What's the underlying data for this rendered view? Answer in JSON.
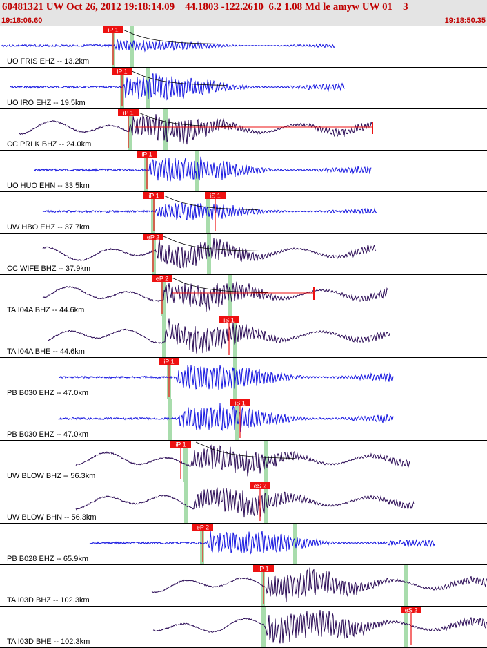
{
  "header": {
    "title": "60481321 UW Oct 26, 2012 19:18:14.09    44.1803 -122.2610  6.2 1.08 Md le amyw UW 01    3",
    "start_time": "19:18:06.60",
    "end_time": "19:18:50.35"
  },
  "colors": {
    "trace_blue": "#1515e0",
    "trace_dark": "#2a0a55",
    "pick_red": "#ee1111",
    "window_green": "#a8dcac",
    "header_text": "#c00000"
  },
  "traces": [
    {
      "label": "UO FRIS EHZ -- 13.2km",
      "color": "blue",
      "style": "noise",
      "seed": 3,
      "amp": 10,
      "start": 2,
      "end": 485,
      "onset": 165,
      "pk": {
        "text": "iP 1",
        "pos": 164
      },
      "s": 195,
      "win": [
        [
          162,
          166
        ],
        [
          188,
          194
        ]
      ],
      "coda": true
    },
    {
      "label": "UO IRO EHZ -- 19.5km",
      "color": "blue",
      "style": "noise",
      "seed": 7,
      "amp": 24,
      "start": 15,
      "end": 500,
      "onset": 178,
      "pk": {
        "text": "iP 1",
        "pos": 177
      },
      "win": [
        [
          174,
          180
        ],
        [
          212,
          218
        ]
      ],
      "coda": true
    },
    {
      "label": "CC PRLK BHZ -- 24.0km",
      "color": "dark",
      "style": "wave",
      "seed": 11,
      "amp": 24,
      "start": 28,
      "end": 540,
      "onset": 188,
      "pk": {
        "text": "iP 1",
        "pos": 186
      },
      "win": [
        [
          185,
          191
        ],
        [
          237,
          243
        ]
      ],
      "coda": true,
      "redline": [
        196,
        540
      ]
    },
    {
      "label": "UO HUO EHN -- 33.5km",
      "color": "blue",
      "style": "noise",
      "seed": 17,
      "amp": 24,
      "start": 50,
      "end": 538,
      "onset": 214,
      "pk": {
        "text": "iP 1",
        "pos": 213
      },
      "win": [
        [
          209,
          215
        ],
        [
          282,
          288
        ]
      ],
      "coda": false
    },
    {
      "label": "UW HBO EHZ -- 37.7km",
      "color": "blue",
      "style": "noise",
      "seed": 23,
      "amp": 16,
      "start": 62,
      "end": 546,
      "onset": 224,
      "pk": {
        "text": "iP 1",
        "pos": 223
      },
      "spk": {
        "text": "iS 1",
        "pos": 312
      },
      "win": [
        [
          219,
          225
        ],
        [
          298,
          304
        ]
      ],
      "coda": true
    },
    {
      "label": "CC WIFE BHZ -- 37.9km",
      "color": "dark",
      "style": "wave",
      "seed": 29,
      "amp": 22,
      "start": 62,
      "end": 545,
      "onset": 226,
      "pk": {
        "text": "eP 2",
        "pos": 222
      },
      "win": [
        [
          220,
          226
        ],
        [
          300,
          306
        ]
      ],
      "coda": true
    },
    {
      "label": "TA I04A BHZ -- 44.6km",
      "color": "dark",
      "style": "wave",
      "seed": 31,
      "amp": 24,
      "start": 62,
      "end": 562,
      "onset": 238,
      "pk": {
        "text": "eP 2",
        "pos": 235
      },
      "win": [
        [
          234,
          240
        ],
        [
          330,
          336
        ]
      ],
      "coda": true,
      "redline": [
        250,
        455
      ]
    },
    {
      "label": "TA I04A BHE -- 44.6km",
      "color": "dark",
      "style": "wave",
      "seed": 37,
      "amp": 26,
      "start": 70,
      "end": 565,
      "onset": 240,
      "spk": {
        "text": "iS 1",
        "pos": 332
      },
      "win": [
        [
          235,
          241
        ],
        [
          338,
          344
        ]
      ],
      "coda": false
    },
    {
      "label": "PB B030 EHZ -- 47.0km",
      "color": "blue",
      "style": "noise",
      "seed": 41,
      "amp": 26,
      "start": 85,
      "end": 570,
      "onset": 255,
      "pk": {
        "text": "iP 1",
        "pos": 245
      },
      "win": [
        [
          242,
          248
        ],
        [
          338,
          344
        ]
      ],
      "coda": false
    },
    {
      "label": "PB B030 EHZ -- 47.0km",
      "color": "blue",
      "style": "noise",
      "seed": 43,
      "amp": 26,
      "start": 85,
      "end": 570,
      "onset": 258,
      "spk": {
        "text": "iS 1",
        "pos": 348
      },
      "win": [
        [
          243,
          249
        ],
        [
          340,
          346
        ]
      ],
      "coda": false
    },
    {
      "label": "UW BLOW BHZ -- 56.3km",
      "color": "dark",
      "style": "wave",
      "seed": 47,
      "amp": 24,
      "start": 110,
      "end": 595,
      "onset": 278,
      "pk": {
        "text": "iP 1",
        "pos": 262
      },
      "win": [
        [
          266,
          272
        ],
        [
          382,
          388
        ]
      ],
      "coda": true
    },
    {
      "label": "UW BLOW BHN -- 56.3km",
      "color": "dark",
      "style": "wave",
      "seed": 53,
      "amp": 24,
      "start": 110,
      "end": 600,
      "onset": 282,
      "spk": {
        "text": "eS 2",
        "pos": 377
      },
      "win": [
        [
          267,
          273
        ],
        [
          382,
          388
        ]
      ],
      "coda": false
    },
    {
      "label": "PB B028 EHZ -- 65.9km",
      "color": "blue",
      "style": "noise",
      "seed": 59,
      "amp": 22,
      "start": 130,
      "end": 630,
      "onset": 300,
      "pk": {
        "text": "eP 2",
        "pos": 294
      },
      "win": [
        [
          290,
          296
        ],
        [
          425,
          431
        ]
      ],
      "coda": false
    },
    {
      "label": "TA I03D BHZ -- 102.3km",
      "color": "dark",
      "style": "wave",
      "seed": 61,
      "amp": 26,
      "start": 220,
      "end": 706,
      "onset": 385,
      "pk": {
        "text": "iP 1",
        "pos": 382
      },
      "win": [
        [
          378,
          384
        ],
        [
          585,
          591
        ]
      ],
      "coda": false
    },
    {
      "label": "TA I03D BHE -- 102.3km",
      "color": "dark",
      "style": "wave",
      "seed": 67,
      "amp": 28,
      "start": 222,
      "end": 706,
      "onset": 385,
      "spk": {
        "text": "eS 2",
        "pos": 596
      },
      "win": [
        [
          379,
          385
        ],
        [
          585,
          591
        ]
      ],
      "coda": false
    }
  ]
}
